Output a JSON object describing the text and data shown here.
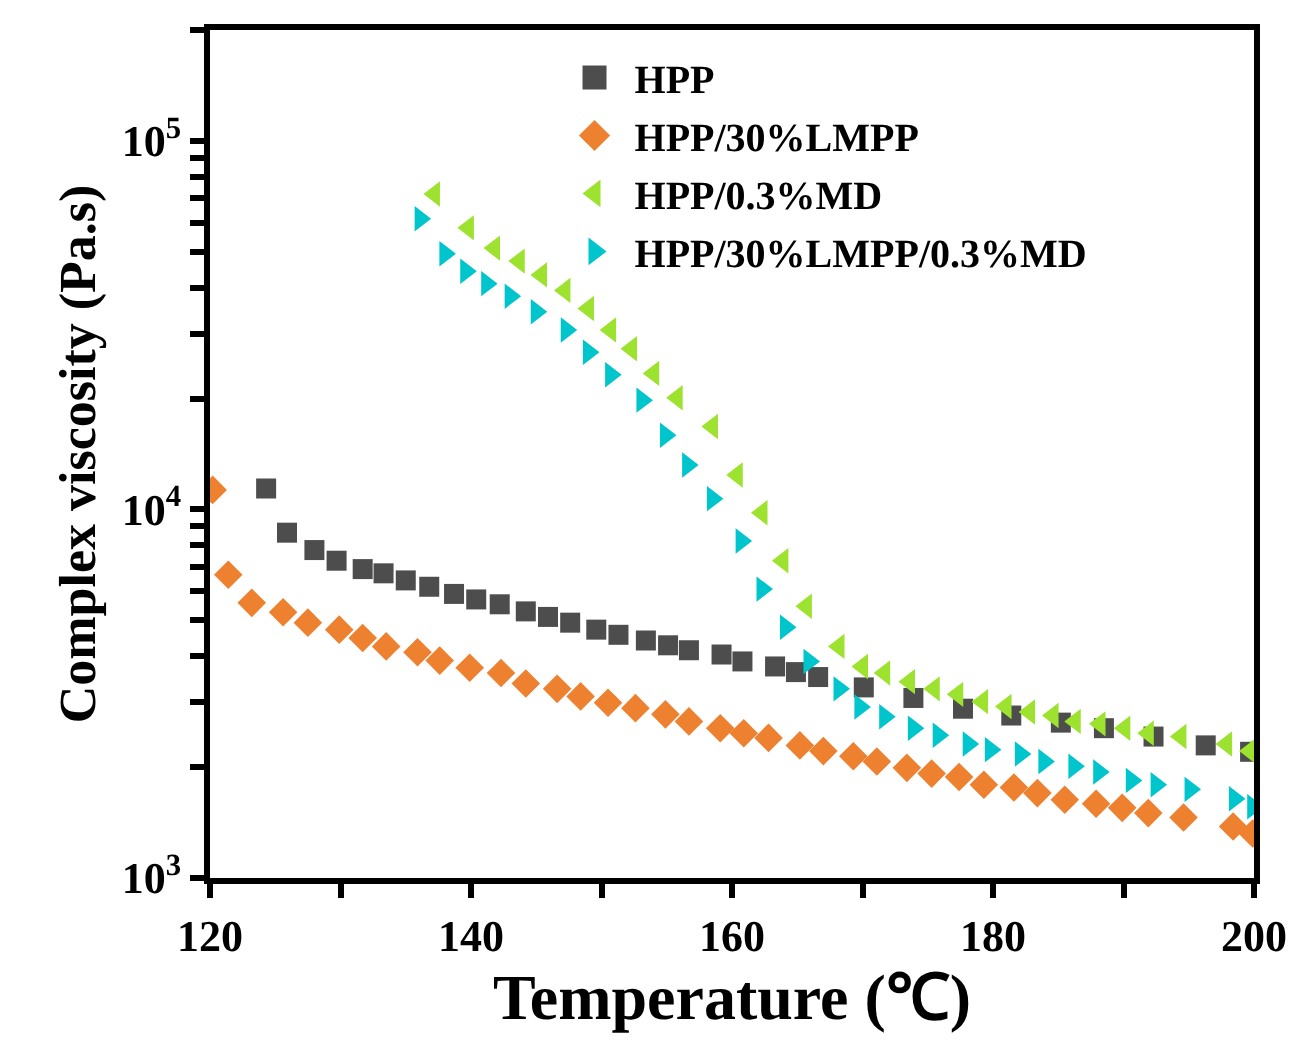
{
  "chart_data": {
    "type": "scatter",
    "xlabel": "Temperature (℃)",
    "ylabel": "Complex viscosity (Pa.s)",
    "log": "y",
    "legend": "top right",
    "xlim": [
      120,
      200
    ],
    "xticks": [
      120,
      {
        "value": 130,
        "label": null
      },
      140,
      {
        "value": 150,
        "label": null
      },
      160,
      {
        "value": 170,
        "label": null
      },
      180,
      {
        "value": 190,
        "label": null
      },
      200
    ],
    "ylim": [
      1000,
      200000
    ],
    "yticks": [
      {
        "value": 1000,
        "label": "10$^{3}$"
      },
      {
        "value": 2000,
        "label": null
      },
      {
        "value": 3000,
        "label": null
      },
      {
        "value": 4000,
        "label": null
      },
      {
        "value": 5000,
        "label": null
      },
      {
        "value": 6000,
        "label": null
      },
      {
        "value": 7000,
        "label": null
      },
      {
        "value": 8000,
        "label": null
      },
      {
        "value": 9000,
        "label": null
      },
      {
        "value": 10000,
        "label": "10$^{4}$"
      },
      {
        "value": 20000,
        "label": null
      },
      {
        "value": 30000,
        "label": null
      },
      {
        "value": 40000,
        "label": null
      },
      {
        "value": 50000,
        "label": null
      },
      {
        "value": 60000,
        "label": null
      },
      {
        "value": 70000,
        "label": null
      },
      {
        "value": 80000,
        "label": null
      },
      {
        "value": 90000,
        "label": null
      },
      {
        "value": 100000,
        "label": "10$^{5}$"
      },
      {
        "value": 200000,
        "label": null
      }
    ],
    "series": [
      {
        "name": "HPP",
        "color": "#4d4d4d",
        "marker": "square",
        "x": [
          124.3,
          125.9,
          128.0,
          129.7,
          131.7,
          133.3,
          135.0,
          136.8,
          138.7,
          140.4,
          142.2,
          144.2,
          145.9,
          147.6,
          149.6,
          151.3,
          153.4,
          155.1,
          156.7,
          159.2,
          160.8,
          163.3,
          164.9,
          166.6,
          170.1,
          173.9,
          177.7,
          181.4,
          185.2,
          188.5,
          192.3,
          196.3,
          199.7
        ],
        "values": [
          11400,
          8650,
          7760,
          7260,
          6890,
          6710,
          6420,
          6170,
          5900,
          5700,
          5530,
          5290,
          5110,
          4930,
          4720,
          4570,
          4410,
          4280,
          4150,
          4040,
          3870,
          3750,
          3620,
          3510,
          3290,
          3080,
          2880,
          2760,
          2640,
          2550,
          2420,
          2290,
          2200
        ]
      },
      {
        "name": "HPP/30%LMPP",
        "color": "#ee8130",
        "marker": "diamond",
        "x": [
          120.2,
          121.4,
          123.2,
          125.6,
          127.5,
          129.9,
          131.7,
          133.5,
          135.9,
          137.6,
          139.9,
          142.3,
          144.2,
          146.6,
          148.4,
          150.5,
          152.6,
          154.9,
          156.7,
          159.1,
          160.9,
          162.8,
          165.2,
          167.0,
          169.3,
          171.1,
          173.4,
          175.3,
          177.4,
          179.3,
          181.6,
          183.4,
          185.5,
          187.9,
          189.9,
          191.9,
          194.6,
          198.4,
          199.9
        ],
        "values": [
          11300,
          6650,
          5580,
          5260,
          4930,
          4720,
          4480,
          4250,
          4100,
          3890,
          3720,
          3600,
          3370,
          3260,
          3110,
          2990,
          2890,
          2780,
          2660,
          2550,
          2470,
          2400,
          2290,
          2210,
          2140,
          2070,
          1990,
          1920,
          1880,
          1790,
          1760,
          1700,
          1630,
          1590,
          1550,
          1500,
          1460,
          1380,
          1320
        ]
      },
      {
        "name": "HPP/0.3%MD",
        "color": "#9de22f",
        "marker": "triangle-left",
        "x": [
          137.2,
          139.8,
          141.8,
          143.7,
          145.4,
          147.2,
          149.0,
          150.7,
          152.3,
          154.0,
          155.8,
          158.5,
          160.4,
          162.3,
          163.9,
          165.7,
          168.2,
          170.0,
          171.7,
          173.6,
          175.5,
          177.3,
          179.2,
          181.0,
          182.8,
          184.6,
          186.3,
          188.2,
          190.1,
          191.9,
          194.4,
          197.9,
          199.7
        ],
        "values": [
          71800,
          58100,
          51200,
          47200,
          43300,
          39300,
          35100,
          30700,
          27300,
          23400,
          20100,
          16800,
          12400,
          9800,
          7260,
          5460,
          4250,
          3750,
          3600,
          3410,
          3260,
          3150,
          3010,
          2920,
          2820,
          2760,
          2660,
          2620,
          2550,
          2470,
          2420,
          2310,
          2210
        ]
      },
      {
        "name": "HPP/30%LMPP/0.3%MD",
        "color": "#00c5cc",
        "marker": "triangle-right",
        "x": [
          136.1,
          138.0,
          139.6,
          141.2,
          143.0,
          145.0,
          147.3,
          149.0,
          150.7,
          153.1,
          154.9,
          156.6,
          158.5,
          160.7,
          162.3,
          164.1,
          165.9,
          168.2,
          169.8,
          171.7,
          173.9,
          175.8,
          178.1,
          179.8,
          182.1,
          183.9,
          186.2,
          188.1,
          190.6,
          192.5,
          195.1,
          198.5,
          199.9
        ],
        "values": [
          61500,
          49400,
          44300,
          41000,
          37900,
          34400,
          30700,
          26700,
          23200,
          19800,
          15900,
          13200,
          10700,
          8210,
          6080,
          4790,
          3870,
          3260,
          2910,
          2740,
          2550,
          2440,
          2310,
          2230,
          2170,
          2070,
          2010,
          1940,
          1840,
          1790,
          1740,
          1640,
          1560
        ]
      }
    ]
  }
}
